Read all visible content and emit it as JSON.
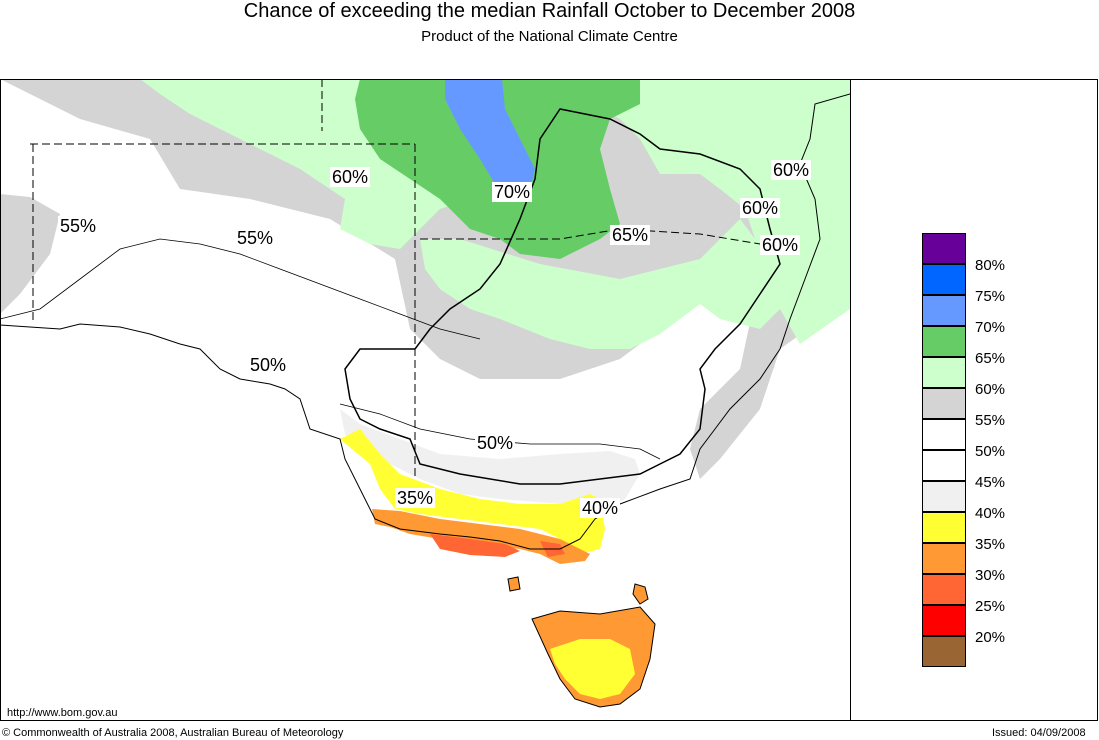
{
  "header": {
    "title": "Chance of exceeding the median Rainfall October to December 2008",
    "subtitle": "Product of the National Climate Centre"
  },
  "map_labels": {
    "l60a": "60%",
    "l70": "70%",
    "l55a": "55%",
    "l55b": "55%",
    "l65": "65%",
    "l60b": "60%",
    "l60c": "60%",
    "l60d": "60%",
    "l50a": "50%",
    "l50b": "50%",
    "l35": "35%",
    "l40": "40%"
  },
  "legend": {
    "items": [
      {
        "label": "80%",
        "color": "#660099"
      },
      {
        "label": "75%",
        "color": "#0066ff"
      },
      {
        "label": "70%",
        "color": "#6699ff"
      },
      {
        "label": "65%",
        "color": "#66cc66"
      },
      {
        "label": "60%",
        "color": "#ccffcc"
      },
      {
        "label": "55%",
        "color": "#d4d4d4"
      },
      {
        "label": "50%",
        "color": "#ffffff"
      },
      {
        "label": "45%",
        "color": "#ffffff"
      },
      {
        "label": "40%",
        "color": "#f0f0f0"
      },
      {
        "label": "35%",
        "color": "#ffff33"
      },
      {
        "label": "30%",
        "color": "#ff9933"
      },
      {
        "label": "25%",
        "color": "#ff6633"
      },
      {
        "label": "20%",
        "color": "#ff0000"
      },
      {
        "label": "",
        "color": "#996633"
      }
    ]
  },
  "footer": {
    "url": "http://www.bom.gov.au",
    "copyright": "© Commonwealth of Australia 2008, Australian Bureau of Meteorology",
    "issued": "Issued: 04/09/2008"
  }
}
